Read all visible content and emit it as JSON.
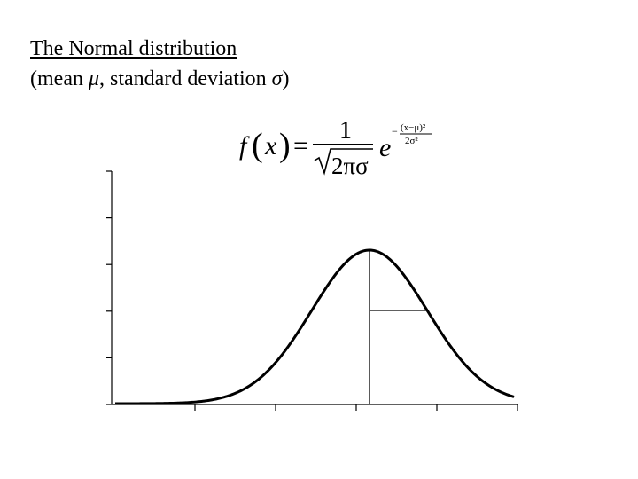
{
  "title": "The Normal distribution",
  "subtitle": {
    "prefix": "(mean ",
    "mu": "μ",
    "middle": ", standard deviation ",
    "sigma": "σ",
    "suffix": ")"
  },
  "formula": {
    "lhs_f": "f",
    "lhs_x": "x",
    "equals": "=",
    "numerator": "1",
    "denominator": "2πσ",
    "base": "e",
    "exp_numerator": "(x−μ)²",
    "exp_denominator": "2σ²",
    "exp_sign": "−"
  },
  "chart_data": {
    "type": "line",
    "curve": "normal",
    "mean": 0,
    "sd": 1,
    "xlim": [
      -4.4,
      2.5
    ],
    "title": "",
    "xlabel": "",
    "ylabel": "",
    "grid": false,
    "legend": "none",
    "x_ticks_count": 5,
    "y_ticks_count": 6,
    "sd_marker_level": 0.6065,
    "colors": {
      "curve": "#000000",
      "axis": "#000000"
    }
  }
}
